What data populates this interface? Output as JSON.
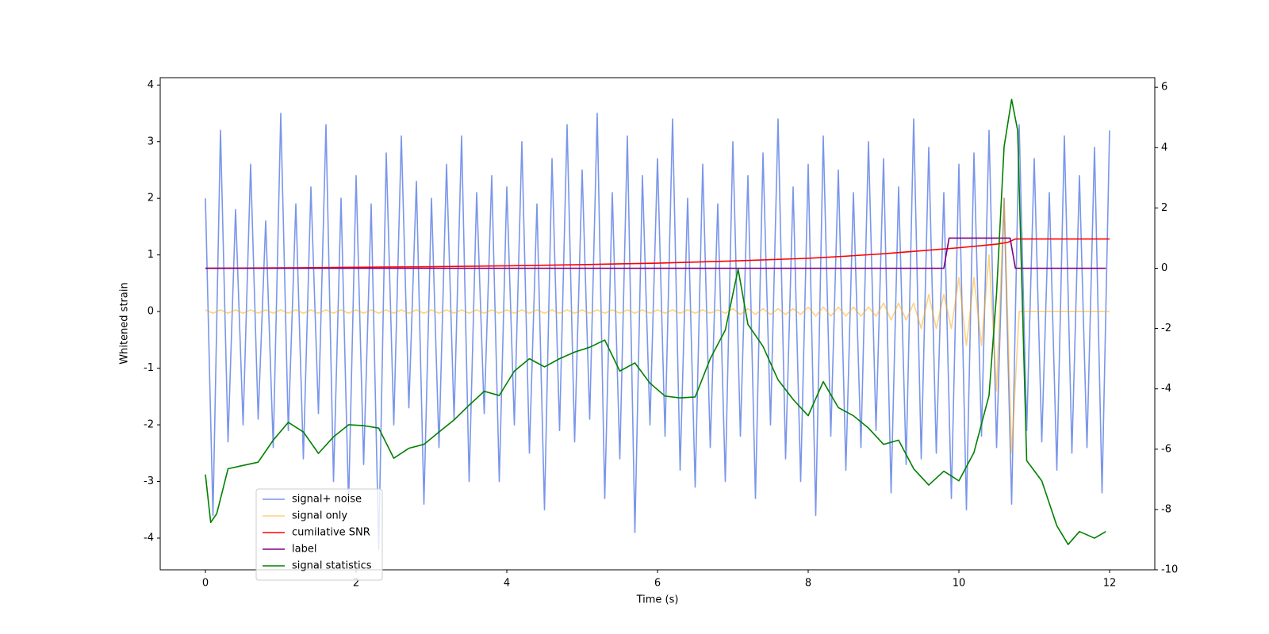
{
  "chart_data": {
    "type": "line",
    "xlabel": "Time (s)",
    "ylabel": "Whitened strain",
    "xlim": [
      -0.6,
      12.6
    ],
    "xticks": [
      0,
      2,
      4,
      6,
      8,
      10,
      12
    ],
    "ylim": [
      -4.56,
      4.13
    ],
    "yticks": [
      -4,
      -3,
      -2,
      -1,
      0,
      1,
      2,
      3,
      4
    ],
    "y2lim": [
      -10,
      6.32
    ],
    "y2ticks": [
      -10,
      -8,
      -6,
      -4,
      -2,
      0,
      2,
      4,
      6
    ],
    "legend": "lower left",
    "x": [
      0,
      0.1,
      0.2,
      0.3,
      0.4,
      0.5,
      0.6,
      0.7,
      0.8,
      0.9,
      1,
      1.1,
      1.2,
      1.3,
      1.4,
      1.5,
      1.6,
      1.7,
      1.8,
      1.9,
      2,
      2.1,
      2.2,
      2.3,
      2.4,
      2.5,
      2.6,
      2.7,
      2.8,
      2.9,
      3,
      3.1,
      3.2,
      3.3,
      3.4,
      3.5,
      3.6,
      3.7,
      3.8,
      3.9,
      4,
      4.1,
      4.2,
      4.3,
      4.4,
      4.5,
      4.6,
      4.7,
      4.8,
      4.9,
      5,
      5.1,
      5.2,
      5.3,
      5.4,
      5.5,
      5.6,
      5.7,
      5.8,
      5.9,
      6,
      6.1,
      6.2,
      6.3,
      6.4,
      6.5,
      6.6,
      6.7,
      6.8,
      6.9,
      7,
      7.1,
      7.2,
      7.3,
      7.4,
      7.5,
      7.6,
      7.7,
      7.8,
      7.9,
      8,
      8.1,
      8.2,
      8.3,
      8.4,
      8.5,
      8.6,
      8.7,
      8.8,
      8.9,
      9,
      9.1,
      9.2,
      9.3,
      9.4,
      9.5,
      9.6,
      9.7,
      9.8,
      9.9,
      10,
      10.1,
      10.2,
      10.3,
      10.4,
      10.5,
      10.6,
      10.7,
      10.8,
      10.9,
      11,
      11.1,
      11.2,
      11.3,
      11.4,
      11.5,
      11.6,
      11.7,
      11.8,
      11.9,
      12
    ],
    "series": [
      {
        "name": "signal+ noise",
        "color": "royalblue",
        "alpha": 0.7,
        "values": [
          2.0,
          -3.6,
          3.2,
          -2.3,
          1.8,
          -2.0,
          2.6,
          -1.9,
          1.6,
          -2.4,
          3.5,
          -2.1,
          1.9,
          -2.6,
          2.2,
          -1.8,
          3.3,
          -3.0,
          2.0,
          -3.4,
          2.4,
          -2.7,
          1.9,
          -4.2,
          2.8,
          -2.0,
          3.1,
          -1.7,
          2.3,
          -3.4,
          2.0,
          -2.4,
          2.6,
          -1.9,
          3.1,
          -3.0,
          2.1,
          -1.8,
          2.4,
          -3.0,
          2.2,
          -2.0,
          3.0,
          -2.5,
          1.9,
          -3.5,
          2.7,
          -2.1,
          3.3,
          -2.3,
          2.5,
          -1.9,
          3.5,
          -3.3,
          2.1,
          -2.6,
          3.1,
          -3.9,
          2.4,
          -2.0,
          2.7,
          -2.2,
          3.4,
          -2.8,
          2.0,
          -3.1,
          2.6,
          -2.4,
          1.9,
          -3.0,
          3.0,
          -2.2,
          2.4,
          -3.3,
          2.8,
          -2.0,
          3.4,
          -2.6,
          2.2,
          -3.0,
          2.6,
          -3.6,
          3.1,
          -2.2,
          2.5,
          -2.8,
          2.1,
          -2.4,
          3.0,
          -2.1,
          2.7,
          -3.2,
          2.2,
          -2.7,
          3.4,
          -2.6,
          2.9,
          -2.5,
          2.1,
          -3.3,
          2.6,
          -3.5,
          2.8,
          -2.2,
          3.2,
          -2.4,
          2.0,
          -3.4,
          3.3,
          -2.1,
          2.7,
          -2.3,
          2.1,
          -2.8,
          3.1,
          -2.5,
          2.4,
          -2.4,
          2.9,
          -3.2,
          3.2
        ]
      },
      {
        "name": "signal only",
        "color": "orange",
        "alpha": 0.5,
        "values": [
          0.03,
          -0.03,
          0.03,
          -0.03,
          0.03,
          -0.03,
          0.03,
          -0.03,
          0.03,
          -0.03,
          0.03,
          -0.03,
          0.03,
          -0.03,
          0.03,
          -0.03,
          0.03,
          -0.03,
          0.03,
          -0.03,
          0.03,
          -0.03,
          0.03,
          -0.03,
          0.03,
          -0.03,
          0.03,
          -0.03,
          0.03,
          -0.03,
          0.03,
          -0.03,
          0.03,
          -0.03,
          0.03,
          -0.03,
          0.03,
          -0.03,
          0.03,
          -0.03,
          0.03,
          -0.03,
          0.03,
          -0.03,
          0.03,
          -0.03,
          0.03,
          -0.03,
          0.03,
          -0.03,
          0.03,
          -0.03,
          0.03,
          -0.03,
          0.03,
          -0.03,
          0.03,
          -0.03,
          0.03,
          -0.03,
          0.03,
          -0.03,
          0.03,
          -0.03,
          0.03,
          -0.03,
          0.03,
          -0.03,
          0.03,
          -0.03,
          0.05,
          -0.05,
          0.05,
          -0.05,
          0.05,
          -0.05,
          0.05,
          -0.05,
          0.05,
          -0.05,
          0.08,
          -0.08,
          0.08,
          -0.08,
          0.08,
          -0.08,
          0.08,
          -0.08,
          0.08,
          -0.08,
          0.15,
          -0.15,
          0.15,
          -0.15,
          0.15,
          -0.3,
          0.3,
          -0.3,
          0.3,
          -0.3,
          0.6,
          -0.6,
          0.6,
          -0.6,
          1.0,
          -1.4,
          2.0,
          -2.5,
          0,
          0,
          0,
          0,
          0,
          0,
          0,
          0,
          0,
          0,
          0,
          0,
          0
        ]
      },
      {
        "name": "cumilative SNR",
        "color": "red",
        "axis": "y2",
        "x": [
          0,
          1,
          2,
          3,
          4,
          5,
          6,
          7,
          8,
          8.5,
          9,
          9.5,
          10,
          10.3,
          10.5,
          10.65,
          10.75,
          12
        ],
        "values": [
          0,
          0.01,
          0.03,
          0.05,
          0.08,
          0.12,
          0.17,
          0.24,
          0.33,
          0.4,
          0.48,
          0.58,
          0.68,
          0.75,
          0.8,
          0.86,
          0.97,
          0.97
        ]
      },
      {
        "name": "label",
        "color": "purple",
        "axis": "y2",
        "x": [
          0,
          9.8,
          9.87,
          10.68,
          10.75,
          11.95
        ],
        "values": [
          0,
          0,
          1,
          1,
          0,
          0
        ]
      },
      {
        "name": "signal statistics",
        "color": "green",
        "axis": "y2",
        "x": [
          0,
          0.07,
          0.15,
          0.3,
          0.5,
          0.7,
          0.9,
          1.1,
          1.3,
          1.5,
          1.7,
          1.9,
          2.1,
          2.3,
          2.5,
          2.7,
          2.9,
          3.1,
          3.3,
          3.5,
          3.7,
          3.9,
          4.1,
          4.3,
          4.5,
          4.7,
          4.9,
          5.1,
          5.3,
          5.5,
          5.7,
          5.9,
          6.1,
          6.3,
          6.5,
          6.7,
          6.9,
          7.07,
          7.2,
          7.4,
          7.6,
          7.8,
          8.0,
          8.2,
          8.4,
          8.6,
          8.8,
          9.0,
          9.2,
          9.4,
          9.6,
          9.8,
          10.0,
          10.2,
          10.4,
          10.5,
          10.6,
          10.7,
          10.78,
          10.9,
          11.1,
          11.3,
          11.45,
          11.6,
          11.8,
          11.95
        ],
        "values": [
          -6.84,
          -8.43,
          -8.14,
          -6.65,
          -6.54,
          -6.43,
          -5.7,
          -5.11,
          -5.43,
          -6.14,
          -5.59,
          -5.19,
          -5.22,
          -5.3,
          -6.3,
          -5.97,
          -5.84,
          -5.43,
          -5.03,
          -4.54,
          -4.08,
          -4.22,
          -3.41,
          -3.0,
          -3.27,
          -3.0,
          -2.78,
          -2.62,
          -2.38,
          -3.41,
          -3.14,
          -3.81,
          -4.24,
          -4.3,
          -4.27,
          -3.0,
          -2.05,
          -0.03,
          -1.86,
          -2.59,
          -3.7,
          -4.35,
          -4.89,
          -3.76,
          -4.62,
          -4.89,
          -5.3,
          -5.84,
          -5.7,
          -6.65,
          -7.19,
          -6.73,
          -7.05,
          -6.11,
          -4.22,
          -0.84,
          4.03,
          5.6,
          4.57,
          -6.38,
          -7.05,
          -8.54,
          -9.16,
          -8.73,
          -8.95,
          -8.73
        ]
      }
    ]
  }
}
